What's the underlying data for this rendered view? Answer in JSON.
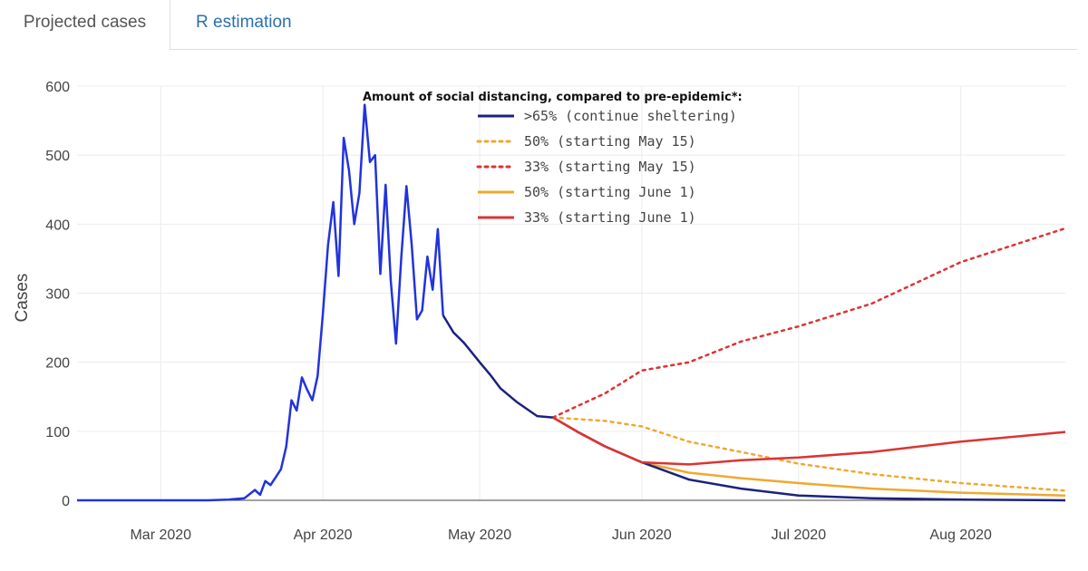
{
  "tabs": [
    {
      "label": "Projected cases",
      "active": true
    },
    {
      "label": "R estimation",
      "active": false
    }
  ],
  "chart_data": {
    "type": "line",
    "title": "",
    "ylabel": "Cases",
    "xlabel": "",
    "x_range": [
      "2020-02-14",
      "2020-08-21"
    ],
    "ylim": [
      0,
      600
    ],
    "yticks": [
      0,
      100,
      200,
      300,
      400,
      500,
      600
    ],
    "xticks": [
      {
        "date": "2020-03-01",
        "label": "Mar 2020"
      },
      {
        "date": "2020-04-01",
        "label": "Apr 2020"
      },
      {
        "date": "2020-05-01",
        "label": "May 2020"
      },
      {
        "date": "2020-06-01",
        "label": "Jun 2020"
      },
      {
        "date": "2020-07-01",
        "label": "Jul 2020"
      },
      {
        "date": "2020-08-01",
        "label": "Aug 2020"
      }
    ],
    "grid": true,
    "legend_title": "Amount of social distancing, compared to pre-epidemic*:",
    "legend_position": "top-center",
    "observed": {
      "color": "#2233dd",
      "points": [
        [
          "2020-02-14",
          0
        ],
        [
          "2020-03-10",
          0
        ],
        [
          "2020-03-14",
          1
        ],
        [
          "2020-03-17",
          3
        ],
        [
          "2020-03-19",
          15
        ],
        [
          "2020-03-20",
          8
        ],
        [
          "2020-03-21",
          28
        ],
        [
          "2020-03-22",
          22
        ],
        [
          "2020-03-24",
          45
        ],
        [
          "2020-03-25",
          78
        ],
        [
          "2020-03-26",
          145
        ],
        [
          "2020-03-27",
          130
        ],
        [
          "2020-03-28",
          178
        ],
        [
          "2020-03-29",
          160
        ],
        [
          "2020-03-30",
          145
        ],
        [
          "2020-03-31",
          180
        ],
        [
          "2020-04-01",
          270
        ],
        [
          "2020-04-02",
          370
        ],
        [
          "2020-04-03",
          432
        ],
        [
          "2020-04-04",
          325
        ],
        [
          "2020-04-05",
          525
        ],
        [
          "2020-04-06",
          478
        ],
        [
          "2020-04-07",
          400
        ],
        [
          "2020-04-08",
          445
        ],
        [
          "2020-04-09",
          573
        ],
        [
          "2020-04-10",
          490
        ],
        [
          "2020-04-11",
          500
        ],
        [
          "2020-04-12",
          328
        ],
        [
          "2020-04-13",
          457
        ],
        [
          "2020-04-14",
          318
        ],
        [
          "2020-04-15",
          227
        ],
        [
          "2020-04-16",
          352
        ],
        [
          "2020-04-17",
          455
        ],
        [
          "2020-04-18",
          370
        ],
        [
          "2020-04-19",
          262
        ],
        [
          "2020-04-20",
          275
        ],
        [
          "2020-04-21",
          353
        ],
        [
          "2020-04-22",
          305
        ],
        [
          "2020-04-23",
          393
        ],
        [
          "2020-04-24",
          268
        ]
      ]
    },
    "series": [
      {
        "name": ">65% (continue sheltering)",
        "color": "#1a237e",
        "dash": "solid",
        "points": [
          [
            "2020-04-24",
            268
          ],
          [
            "2020-04-26",
            243
          ],
          [
            "2020-04-28",
            228
          ],
          [
            "2020-05-01",
            200
          ],
          [
            "2020-05-03",
            182
          ],
          [
            "2020-05-05",
            162
          ],
          [
            "2020-05-08",
            143
          ],
          [
            "2020-05-12",
            122
          ],
          [
            "2020-05-15",
            120
          ],
          [
            "2020-05-20",
            98
          ],
          [
            "2020-05-25",
            78
          ],
          [
            "2020-06-01",
            55
          ],
          [
            "2020-06-10",
            30
          ],
          [
            "2020-06-20",
            17
          ],
          [
            "2020-07-01",
            7
          ],
          [
            "2020-07-15",
            3
          ],
          [
            "2020-08-01",
            1
          ],
          [
            "2020-08-21",
            0
          ]
        ]
      },
      {
        "name": "50% (starting May 15)",
        "color": "#f0a830",
        "dash": "dot",
        "points": [
          [
            "2020-05-15",
            120
          ],
          [
            "2020-05-25",
            115
          ],
          [
            "2020-06-01",
            107
          ],
          [
            "2020-06-10",
            85
          ],
          [
            "2020-06-20",
            70
          ],
          [
            "2020-07-01",
            53
          ],
          [
            "2020-07-15",
            38
          ],
          [
            "2020-08-01",
            25
          ],
          [
            "2020-08-21",
            14
          ]
        ]
      },
      {
        "name": "33% (starting May 15)",
        "color": "#dd3333",
        "dash": "dot",
        "points": [
          [
            "2020-05-15",
            120
          ],
          [
            "2020-05-25",
            155
          ],
          [
            "2020-06-01",
            188
          ],
          [
            "2020-06-10",
            200
          ],
          [
            "2020-06-20",
            230
          ],
          [
            "2020-07-01",
            252
          ],
          [
            "2020-07-15",
            285
          ],
          [
            "2020-08-01",
            345
          ],
          [
            "2020-08-21",
            394
          ]
        ]
      },
      {
        "name": "50% (starting June 1)",
        "color": "#f0a830",
        "dash": "solid",
        "points": [
          [
            "2020-05-15",
            120
          ],
          [
            "2020-05-20",
            98
          ],
          [
            "2020-05-25",
            78
          ],
          [
            "2020-06-01",
            55
          ],
          [
            "2020-06-10",
            40
          ],
          [
            "2020-06-20",
            32
          ],
          [
            "2020-07-01",
            25
          ],
          [
            "2020-07-15",
            17
          ],
          [
            "2020-08-01",
            11
          ],
          [
            "2020-08-21",
            7
          ]
        ]
      },
      {
        "name": "33% (starting June 1)",
        "color": "#dd3333",
        "dash": "solid",
        "points": [
          [
            "2020-05-15",
            120
          ],
          [
            "2020-05-20",
            98
          ],
          [
            "2020-05-25",
            78
          ],
          [
            "2020-06-01",
            55
          ],
          [
            "2020-06-10",
            52
          ],
          [
            "2020-06-20",
            58
          ],
          [
            "2020-07-01",
            62
          ],
          [
            "2020-07-15",
            70
          ],
          [
            "2020-08-01",
            85
          ],
          [
            "2020-08-21",
            99
          ]
        ]
      }
    ]
  }
}
